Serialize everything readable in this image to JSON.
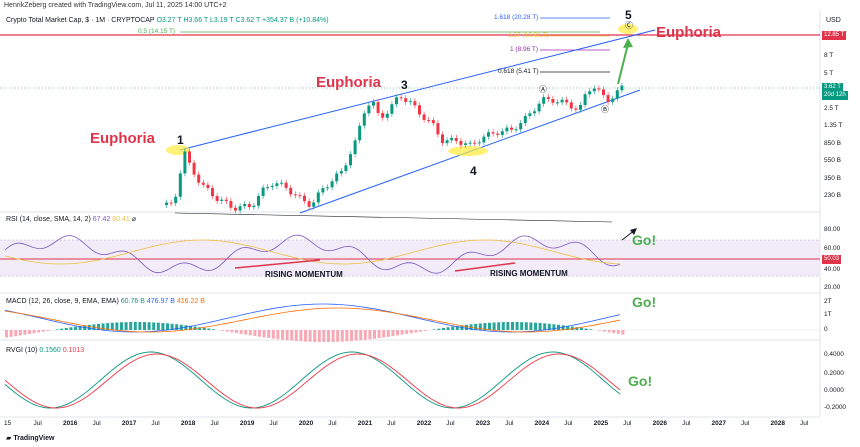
{
  "credit": "HenrikZeberg created with TradingView.com, Jul 11, 2025 14:00 UTC+2",
  "header": {
    "symbol": "Crypto Total Market Cap, $ · 1M · CRYPTOCAP",
    "ohlc": "O3.27 T H3.66 T L3.19 T C3.62 T +354.37 B (+10.84%)"
  },
  "currency": "USD",
  "price_axis": [
    "8 T",
    "5 T",
    "2.5 T",
    "1.35 T",
    "850 B",
    "550 B",
    "350 B",
    "230 B"
  ],
  "price_tags": {
    "top": "12.85 T",
    "current": "3.62 T",
    "countdown": "20d 12h"
  },
  "fib_levels": [
    {
      "label": "1.618 (20.28 T)",
      "color": "#2962ff"
    },
    {
      "label": "1.27 (12.81 T)",
      "color": "#f0c040"
    },
    {
      "label": "1 (8.96 T)",
      "color": "#9c27b0"
    },
    {
      "label": "0.618 (5.41 T)",
      "color": "#131722"
    },
    {
      "label": "0.5 (14.15 T)",
      "color": "#4caf50"
    }
  ],
  "annotations": {
    "euphoria": "Euphoria",
    "wave_labels": [
      "1",
      "3",
      "4",
      "5"
    ],
    "wave_circle_a": "Ⓐ",
    "wave_circle_b": "Ⓑ",
    "wave_circle_c": "Ⓒ",
    "go": "Go!",
    "rising_momentum": "RISING MOMENTUM"
  },
  "rsi": {
    "label": "RSI (14, close, SMA, 14, 2)",
    "v1": "67.42",
    "v2": "60.41",
    "axis": [
      "80.00",
      "60.00",
      "40.00",
      "20.00"
    ],
    "tag": "50.03"
  },
  "macd": {
    "label": "MACD (12, 26, close, 9, EMA, EMA)",
    "hist": "60.76 B",
    "macd": "476.97 B",
    "signal": "416.22 B",
    "axis": [
      "2T",
      "1T",
      "0"
    ]
  },
  "rvgi": {
    "label": "RVGI (10)",
    "v1": "0.1560",
    "v2": "0.1013",
    "axis": [
      "0.4000",
      "0.2000",
      "0.0000",
      "-0.2000"
    ]
  },
  "time_axis": [
    {
      "label": "15",
      "bold": false
    },
    {
      "label": "Jul",
      "bold": false
    },
    {
      "label": "2016",
      "bold": true
    },
    {
      "label": "Jul",
      "bold": false
    },
    {
      "label": "2017",
      "bold": true
    },
    {
      "label": "Jul",
      "bold": false
    },
    {
      "label": "2018",
      "bold": true
    },
    {
      "label": "Jul",
      "bold": false
    },
    {
      "label": "2019",
      "bold": true
    },
    {
      "label": "Jul",
      "bold": false
    },
    {
      "label": "2020",
      "bold": true
    },
    {
      "label": "Jul",
      "bold": false
    },
    {
      "label": "2021",
      "bold": true
    },
    {
      "label": "Jul",
      "bold": false
    },
    {
      "label": "2022",
      "bold": true
    },
    {
      "label": "Jul",
      "bold": false
    },
    {
      "label": "2023",
      "bold": true
    },
    {
      "label": "Jul",
      "bold": false
    },
    {
      "label": "2024",
      "bold": true
    },
    {
      "label": "Jul",
      "bold": false
    },
    {
      "label": "2025",
      "bold": true
    },
    {
      "label": "Jul",
      "bold": false
    },
    {
      "label": "2026",
      "bold": true
    },
    {
      "label": "Jul",
      "bold": false
    },
    {
      "label": "2027",
      "bold": true
    },
    {
      "label": "Jul",
      "bold": false
    },
    {
      "label": "2028",
      "bold": true
    },
    {
      "label": "Jul",
      "bold": false
    }
  ],
  "logo": "TradingView",
  "colors": {
    "up": "#089981",
    "down": "#f23645",
    "euphoria": "#e0344b",
    "go": "#4caf50",
    "channel": "#2962ff"
  }
}
